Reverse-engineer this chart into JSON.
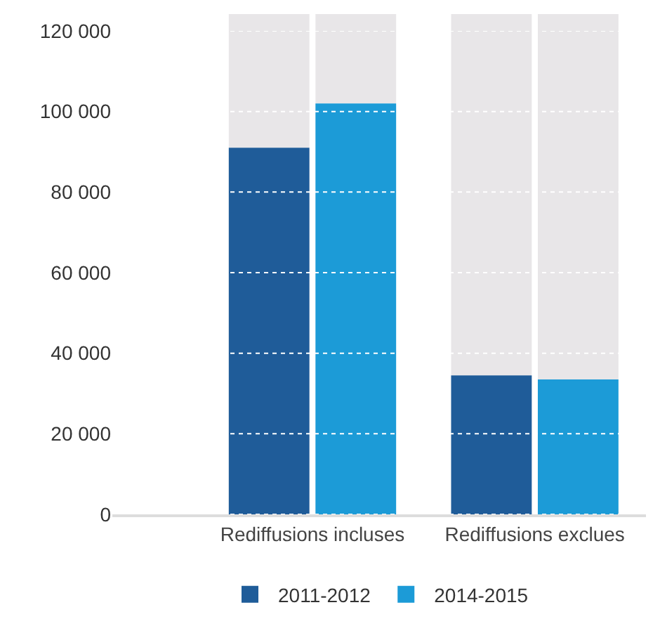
{
  "chart_data": {
    "type": "bar",
    "categories": [
      "Rediffusions incluses",
      "Rediffusions exclues"
    ],
    "series": [
      {
        "name": "2011-2012",
        "color": "#1f5c99",
        "values": [
          91000,
          34500
        ]
      },
      {
        "name": "2014-2015",
        "color": "#1c9bd7",
        "values": [
          102000,
          33500
        ]
      }
    ],
    "ylim": [
      0,
      120000
    ],
    "yticks": [
      {
        "value": 0,
        "label": "0"
      },
      {
        "value": 20000,
        "label": "20 000"
      },
      {
        "value": 40000,
        "label": "40 000"
      },
      {
        "value": 60000,
        "label": "60 000"
      },
      {
        "value": 80000,
        "label": "80 000"
      },
      {
        "value": 100000,
        "label": "100 000"
      },
      {
        "value": 120000,
        "label": "120 000"
      }
    ],
    "grid": "y",
    "legend": "bottom"
  }
}
